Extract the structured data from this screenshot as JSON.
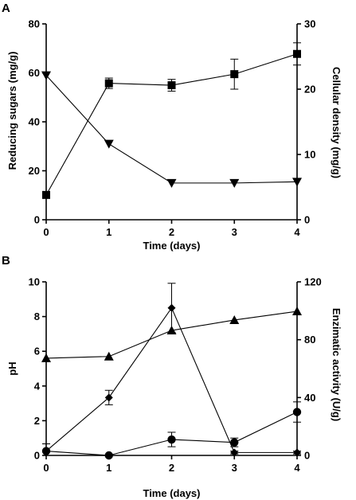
{
  "chart_data": [
    {
      "panel": "A",
      "type": "line",
      "xlabel": "Time (days)",
      "ylabel": "Reducing sugars (mg/g)",
      "y2label": "Cellular density (mg/g)",
      "x_ticks": [
        0,
        1,
        2,
        3,
        4
      ],
      "y_ticks": [
        0,
        20,
        40,
        60,
        80
      ],
      "y2_ticks": [
        0,
        10,
        20,
        30
      ],
      "xlim": [
        0,
        4
      ],
      "ylim": [
        0,
        80
      ],
      "y2lim": [
        0,
        30
      ],
      "series": [
        {
          "marker": "triangle-down",
          "axis": "left",
          "x": [
            0,
            1,
            2,
            3,
            4
          ],
          "values": [
            59,
            31,
            15,
            15,
            15.5
          ],
          "errors": [
            0,
            0,
            0,
            0,
            0
          ]
        },
        {
          "marker": "square",
          "axis": "right",
          "x": [
            0,
            1,
            2,
            3,
            4
          ],
          "values": [
            3.8,
            20.9,
            20.6,
            22.3,
            25.4
          ],
          "errors": [
            0,
            0.8,
            0.9,
            2.3,
            1.7
          ]
        }
      ]
    },
    {
      "panel": "B",
      "type": "line",
      "xlabel": "Time (days)",
      "ylabel": "pH",
      "y2label": "Enzimatic activity (U/g)",
      "x_ticks": [
        0,
        1,
        2,
        3,
        4
      ],
      "y_ticks": [
        0,
        2,
        4,
        6,
        8,
        10
      ],
      "y2_ticks": [
        0,
        40,
        80,
        120
      ],
      "xlim": [
        0,
        4
      ],
      "ylim": [
        0,
        10
      ],
      "y2lim": [
        0,
        120
      ],
      "series": [
        {
          "marker": "triangle-up",
          "axis": "left",
          "x": [
            0,
            1,
            2,
            3,
            4
          ],
          "values": [
            5.6,
            5.7,
            7.2,
            7.8,
            8.3
          ],
          "errors": [
            0,
            0,
            0,
            0,
            0
          ]
        },
        {
          "marker": "diamond",
          "axis": "right",
          "x": [
            0,
            1,
            2,
            3,
            4
          ],
          "values": [
            3,
            40,
            102,
            2,
            2
          ],
          "errors": [
            5,
            5,
            17,
            1,
            1
          ]
        },
        {
          "marker": "circle",
          "axis": "right",
          "x": [
            0,
            1,
            2,
            3,
            4
          ],
          "values": [
            3,
            0,
            11,
            9,
            30
          ],
          "errors": [
            5,
            0,
            5,
            3,
            7
          ]
        }
      ]
    }
  ]
}
